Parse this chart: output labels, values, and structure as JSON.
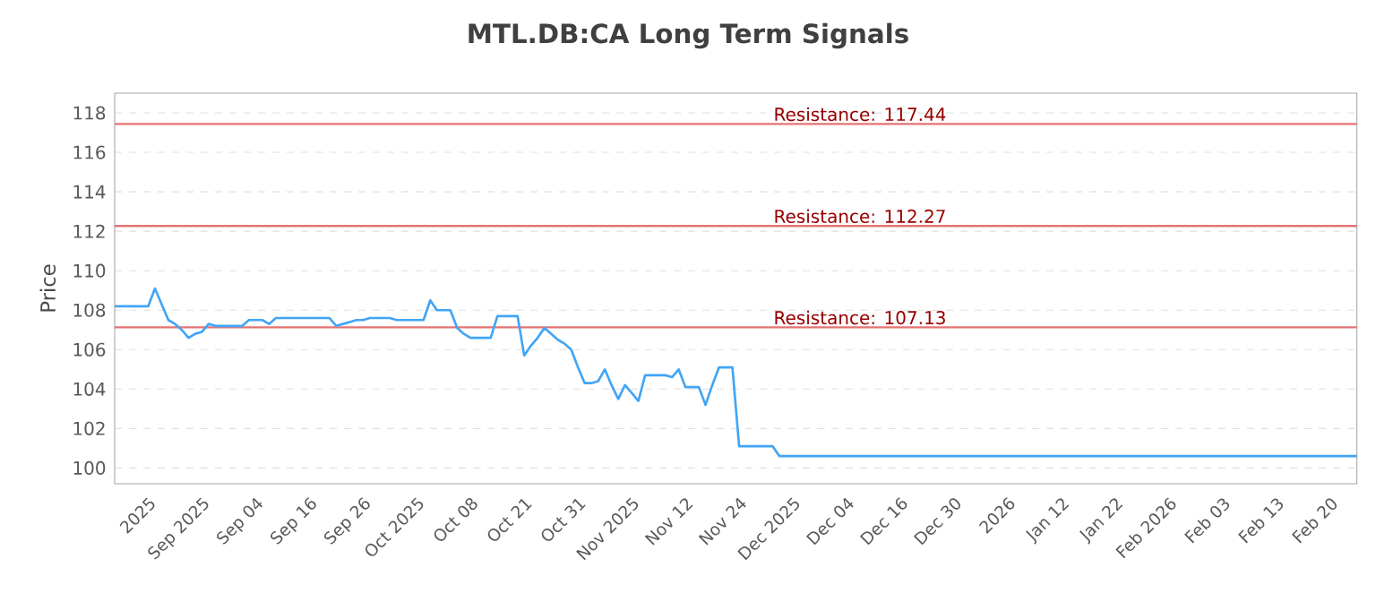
{
  "chart_data": {
    "type": "line",
    "title": "MTL.DB:CA Long Term Signals",
    "ylabel": "Price",
    "categories": [
      null,
      null,
      null,
      null,
      null,
      "2025",
      null,
      null,
      null,
      null,
      null,
      null,
      null,
      "Sep 2025",
      null,
      null,
      null,
      null,
      null,
      null,
      null,
      "Sep 04",
      null,
      null,
      null,
      null,
      null,
      null,
      null,
      "Sep 16",
      null,
      null,
      null,
      null,
      null,
      null,
      null,
      "Sep 26",
      null,
      null,
      null,
      null,
      null,
      null,
      null,
      "Oct 2025",
      null,
      null,
      null,
      null,
      null,
      null,
      null,
      "Oct 08",
      null,
      null,
      null,
      null,
      null,
      null,
      null,
      "Oct 21",
      null,
      null,
      null,
      null,
      null,
      null,
      null,
      "Oct 31",
      null,
      null,
      null,
      null,
      null,
      null,
      null,
      "Nov 2025",
      null,
      null,
      null,
      null,
      null,
      null,
      null,
      "Nov 12",
      null,
      null,
      null,
      null,
      null,
      null,
      null,
      "Nov 24",
      null,
      null,
      null,
      null,
      null,
      null,
      null,
      "Dec 2025",
      null,
      null,
      null,
      null,
      null,
      null,
      null,
      "Dec 04",
      null,
      null,
      null,
      null,
      null,
      null,
      null,
      "Dec 16",
      null,
      null,
      null,
      null,
      null,
      null,
      null,
      "Dec 30",
      null,
      null,
      null,
      null,
      null,
      null,
      null,
      "2026",
      null,
      null,
      null,
      null,
      null,
      null,
      null,
      "Jan 12",
      null,
      null,
      null,
      null,
      null,
      null,
      null,
      "Jan 22",
      null,
      null,
      null,
      null,
      null,
      null,
      null,
      "Feb 2026",
      null,
      null,
      null,
      null,
      null,
      null,
      null,
      "Feb 03",
      null,
      null,
      null,
      null,
      null,
      null,
      null,
      "Feb 13",
      null,
      null,
      null,
      null,
      null,
      null,
      null,
      "Feb 20",
      null,
      null,
      null,
      null
    ],
    "series": [
      {
        "color": "#42a5f5",
        "values": [
          108.2,
          108.2,
          108.2,
          108.2,
          108.2,
          108.2,
          109.1,
          108.3,
          107.5,
          107.3,
          107.0,
          106.6,
          106.8,
          106.9,
          107.3,
          107.2,
          107.2,
          107.2,
          107.2,
          107.2,
          107.5,
          107.5,
          107.5,
          107.3,
          107.6,
          107.6,
          107.6,
          107.6,
          107.6,
          107.6,
          107.6,
          107.6,
          107.6,
          107.2,
          107.3,
          107.4,
          107.5,
          107.5,
          107.6,
          107.6,
          107.6,
          107.6,
          107.5,
          107.5,
          107.5,
          107.5,
          107.5,
          108.5,
          108.0,
          108.0,
          108.0,
          107.1,
          106.8,
          106.6,
          106.6,
          106.6,
          106.6,
          107.7,
          107.7,
          107.7,
          107.7,
          105.7,
          106.2,
          106.6,
          107.1,
          106.8,
          106.5,
          106.3,
          106.0,
          105.1,
          104.3,
          104.3,
          104.4,
          105.0,
          104.2,
          103.5,
          104.2,
          103.8,
          103.4,
          104.7,
          104.7,
          104.7,
          104.7,
          104.6,
          105.0,
          104.1,
          104.1,
          104.1,
          103.2,
          104.2,
          105.1,
          105.1,
          105.1,
          101.1,
          101.1,
          101.1,
          101.1,
          101.1,
          101.1,
          100.6,
          100.6,
          100.6,
          100.6,
          100.6,
          100.6,
          100.6,
          100.6,
          100.6,
          100.6,
          100.6,
          100.6,
          100.6,
          100.6,
          100.6,
          100.6,
          100.6,
          100.6,
          100.6,
          100.6,
          100.6,
          100.6,
          100.6,
          100.6,
          100.6,
          100.6,
          100.6,
          100.6,
          100.6,
          100.6,
          100.6,
          100.6,
          100.6,
          100.6,
          100.6,
          100.6,
          100.6,
          100.6,
          100.6,
          100.6,
          100.6,
          100.6,
          100.6,
          100.6,
          100.6,
          100.6,
          100.6,
          100.6,
          100.6,
          100.6,
          100.6,
          100.6,
          100.6,
          100.6,
          100.6,
          100.6,
          100.6,
          100.6,
          100.6,
          100.6,
          100.6,
          100.6,
          100.6,
          100.6,
          100.6,
          100.6,
          100.6,
          100.6,
          100.6,
          100.6,
          100.6,
          100.6,
          100.6,
          100.6,
          100.6,
          100.6,
          100.6,
          100.6,
          100.6,
          100.6,
          100.6,
          100.6,
          100.6,
          100.6,
          100.6,
          100.6,
          100.6
        ]
      }
    ],
    "ylim": [
      99.2,
      119
    ],
    "yticks": [
      100,
      102,
      104,
      106,
      108,
      110,
      112,
      114,
      116,
      118
    ],
    "ref_lines": [
      {
        "axis": "y",
        "value": 117.44,
        "label": "Resistance: 117.44",
        "color": "#e57373"
      },
      {
        "axis": "y",
        "value": 112.27,
        "label": "Resistance: 112.27",
        "color": "#e57373"
      },
      {
        "axis": "y",
        "value": 107.13,
        "label": "Resistance: 107.13",
        "color": "#e57373"
      }
    ],
    "grid": "y",
    "marker": "none",
    "line_style": "solid"
  }
}
